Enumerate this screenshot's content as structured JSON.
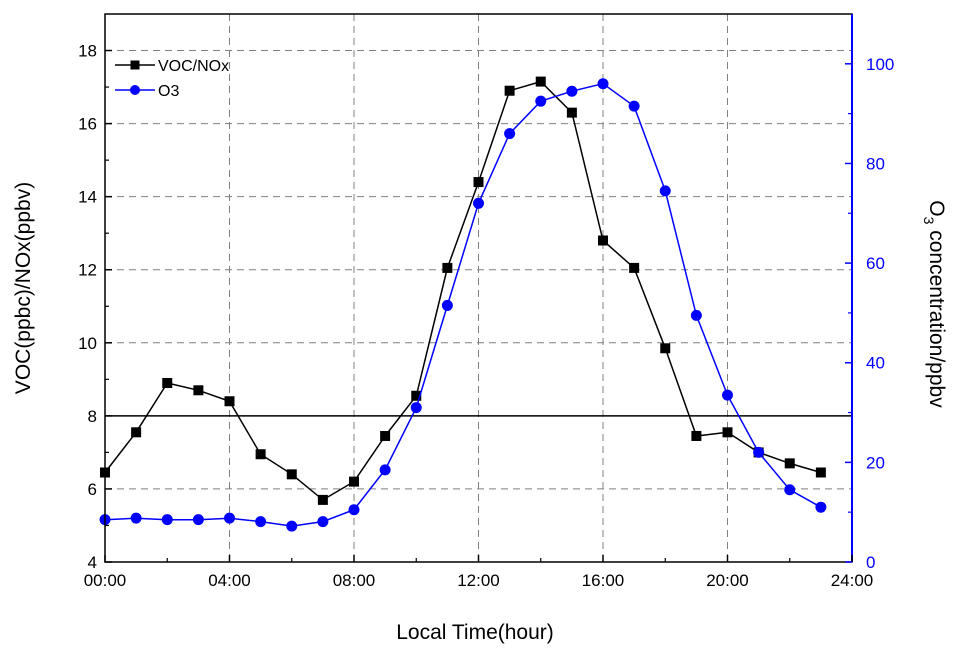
{
  "chart_data": {
    "type": "line",
    "xlabel": "Local Time(hour)",
    "ylabel": "VOC(ppbc)/NOx(ppbv)",
    "y2label_prefix": "O",
    "y2label_sub": "3",
    "y2label_suffix": " concentration/ppbv",
    "x_ticks": [
      0,
      4,
      8,
      12,
      16,
      20,
      24
    ],
    "x_tick_labels": [
      "00:00",
      "04:00",
      "08:00",
      "12:00",
      "16:00",
      "20:00",
      "24:00"
    ],
    "xlim": [
      0,
      24
    ],
    "ylim": [
      4,
      19
    ],
    "y_ticks": [
      4,
      6,
      8,
      10,
      12,
      14,
      16,
      18
    ],
    "y_tick_labels": [
      "4",
      "6",
      "8",
      "10",
      "12",
      "14",
      "16",
      "18"
    ],
    "y2lim": [
      0,
      110
    ],
    "y2_ticks": [
      0,
      20,
      40,
      60,
      80,
      100
    ],
    "y2_tick_labels": [
      "0",
      "20",
      "40",
      "60",
      "80",
      "100"
    ],
    "reference_line_y": 8,
    "grid": true,
    "legend_position": "top-left",
    "series": [
      {
        "name": "VOC/NOx",
        "axis": "left",
        "color": "#000000",
        "marker": "square",
        "x": [
          0,
          1,
          2,
          3,
          4,
          5,
          6,
          7,
          8,
          9,
          10,
          11,
          12,
          13,
          14,
          15,
          16,
          17,
          18,
          19,
          20,
          21,
          22,
          23
        ],
        "values": [
          6.45,
          7.55,
          8.9,
          8.7,
          8.4,
          6.95,
          6.4,
          5.7,
          6.2,
          7.45,
          8.55,
          12.05,
          14.4,
          16.9,
          17.15,
          16.3,
          12.8,
          12.05,
          9.85,
          7.45,
          7.55,
          7.0,
          6.7,
          6.45
        ]
      },
      {
        "name": "O3",
        "axis": "right",
        "color": "#0000ff",
        "marker": "circle",
        "x": [
          0,
          1,
          2,
          3,
          4,
          5,
          6,
          7,
          8,
          9,
          10,
          11,
          12,
          13,
          14,
          15,
          16,
          17,
          18,
          19,
          20,
          21,
          22,
          23
        ],
        "values": [
          8.5,
          8.8,
          8.5,
          8.5,
          8.8,
          8.1,
          7.2,
          8.1,
          10.5,
          18.5,
          31,
          51.5,
          72,
          86,
          92.5,
          94.5,
          96,
          91.5,
          74.5,
          49.5,
          33.5,
          22,
          14.5,
          11
        ]
      }
    ]
  },
  "colors": {
    "left_axis": "#000000",
    "right_axis": "#0000ff",
    "grid": "#808080"
  }
}
